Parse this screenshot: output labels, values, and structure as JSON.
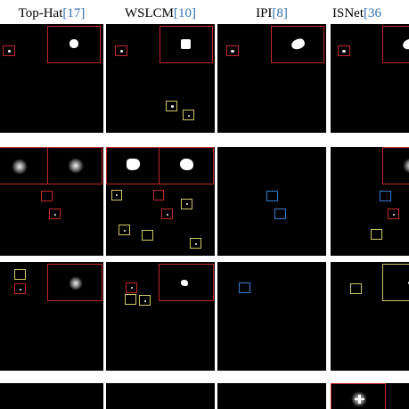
{
  "columns": [
    {
      "method": "Top-Hat",
      "ref": "[17]"
    },
    {
      "method": "WSLCM",
      "ref": "[10]"
    },
    {
      "method": "IPI",
      "ref": "[8]"
    },
    {
      "method": "ISNet",
      "ref": "[36"
    }
  ],
  "legend_colors": {
    "correct_detection": "#c62828",
    "false_alarm": "#cfc867",
    "missed_target": "#3a7bd5"
  }
}
